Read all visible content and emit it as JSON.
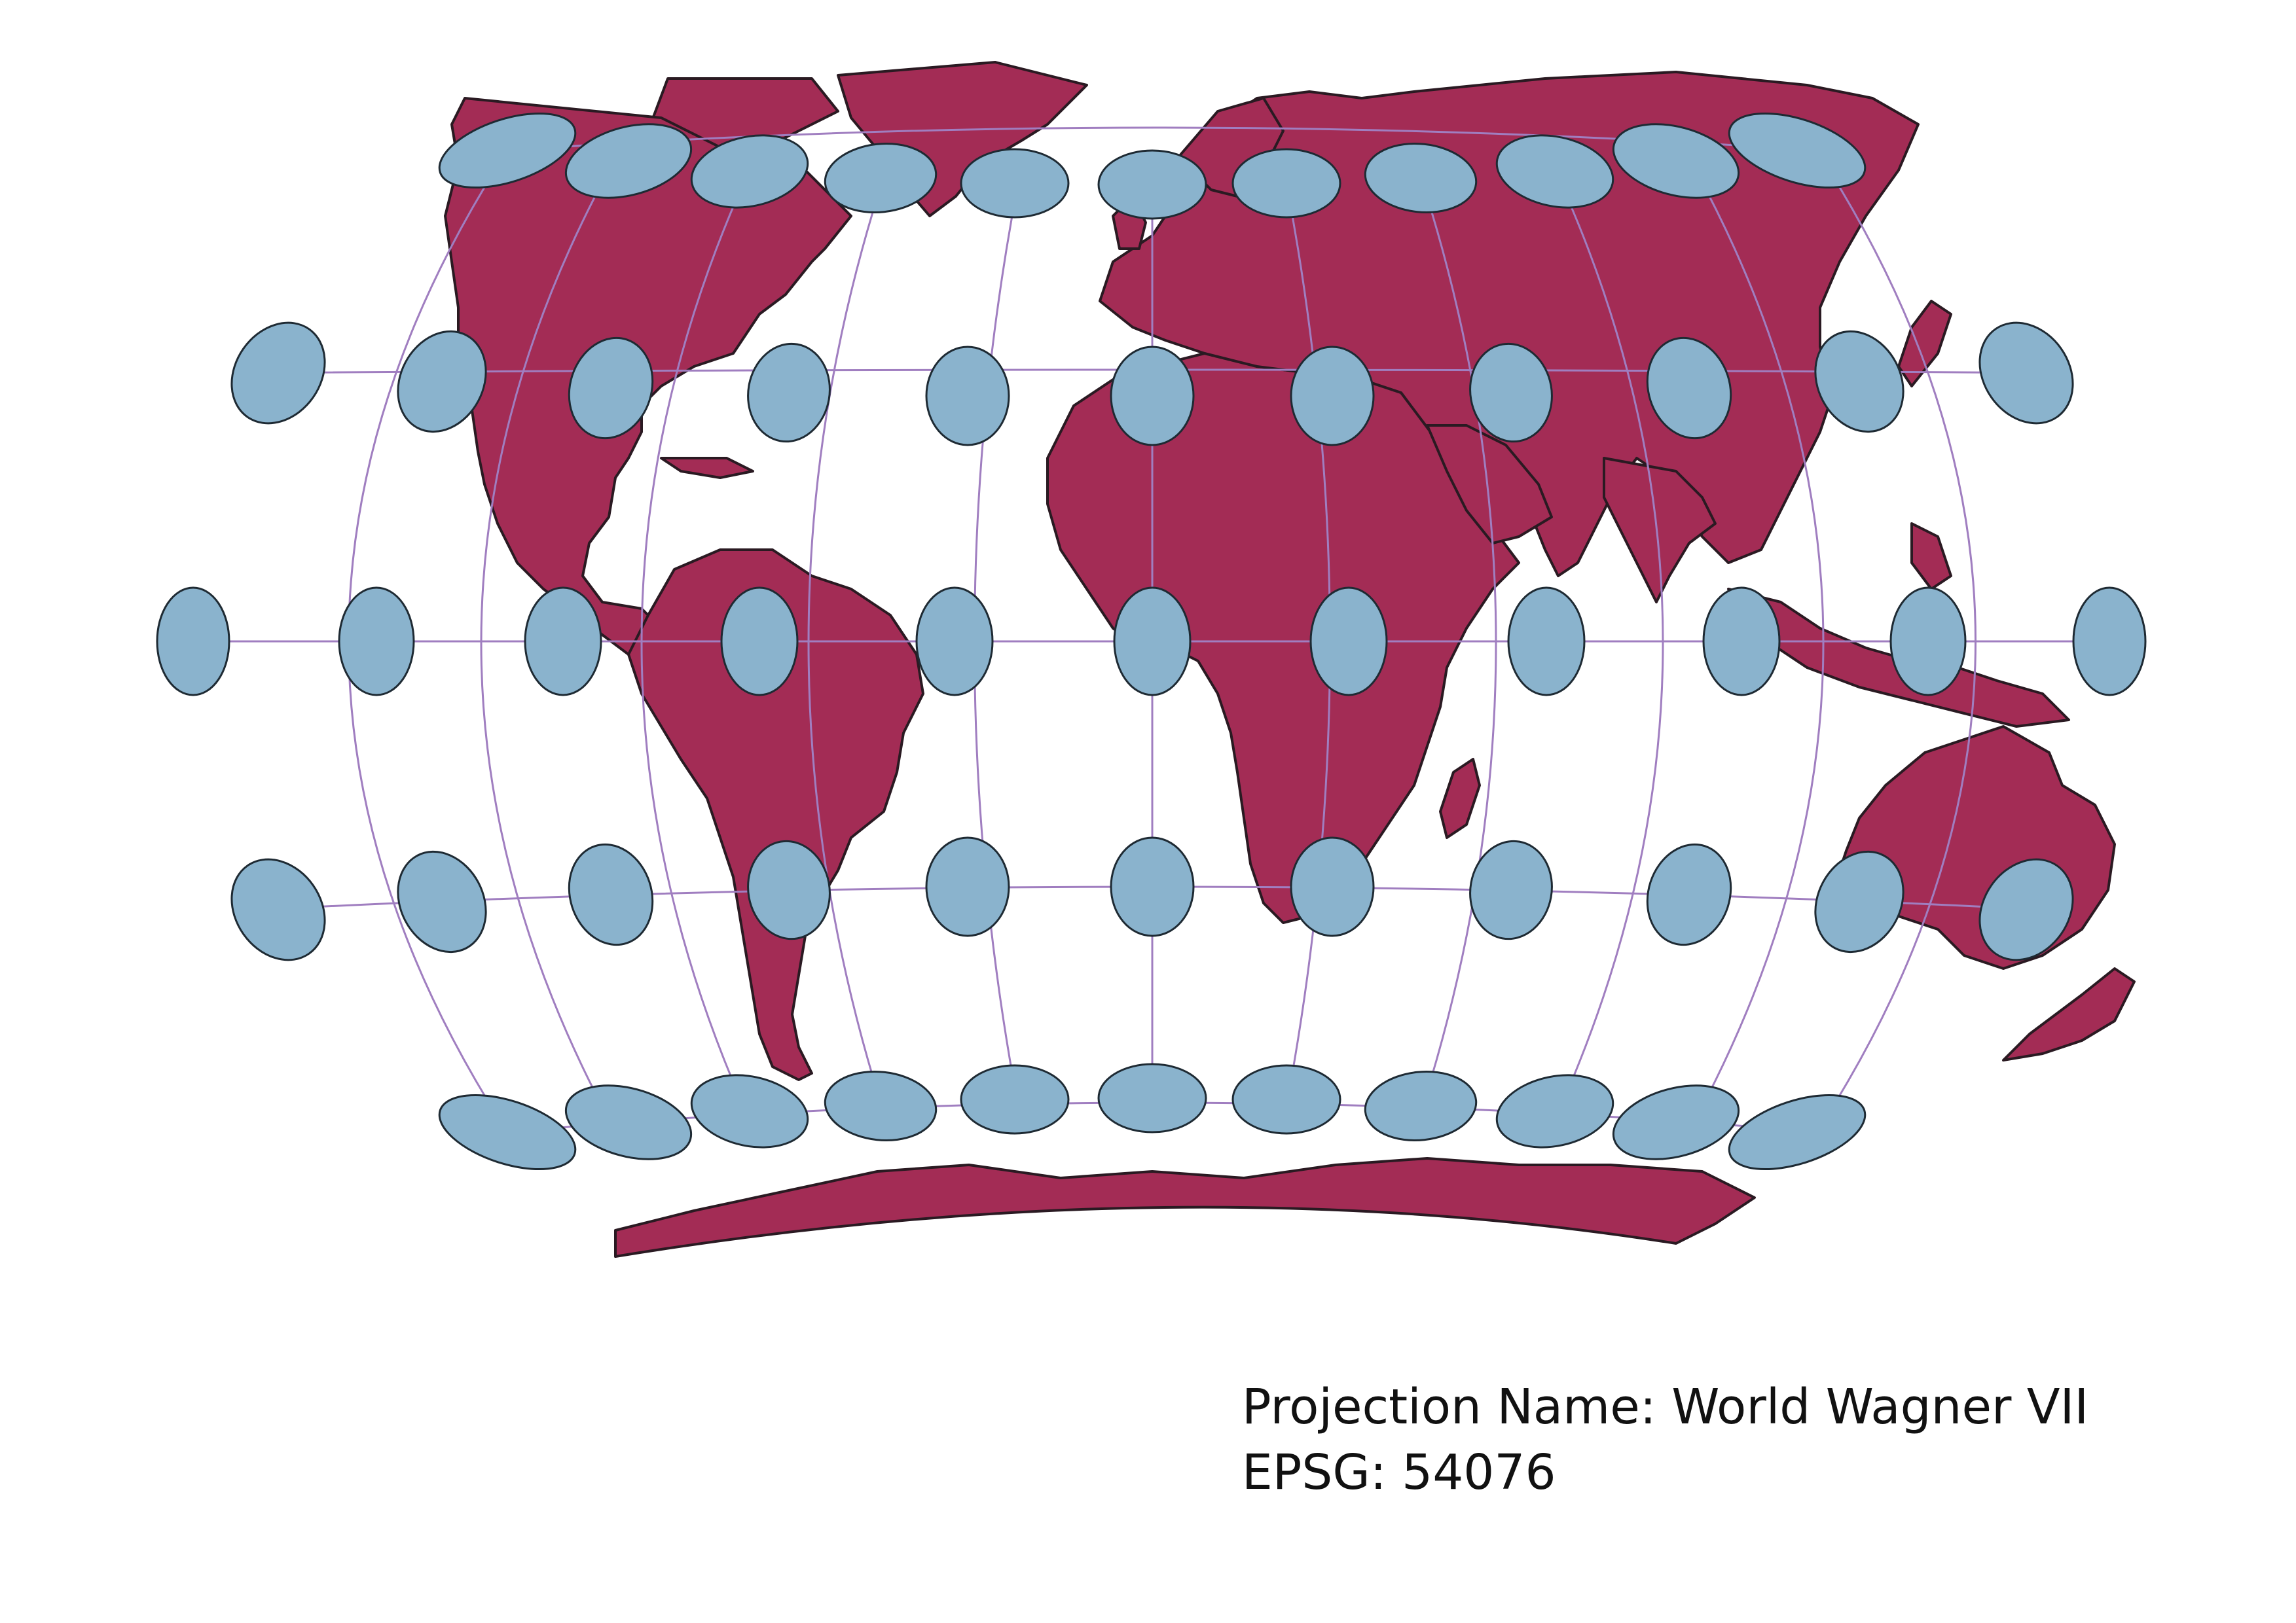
{
  "caption": {
    "projection_line": "Projection Name: World Wagner VII",
    "epsg_line": "EPSG: 54076"
  },
  "map": {
    "land_color": "#A32C55",
    "border_color": "#2A1A22",
    "ocean_color": "#FFFFFF",
    "ellipse_fill": "#8AB3CD",
    "ellipse_stroke": "#1E2A33",
    "graticule_color": "#A07EC0",
    "tissot_rows": [
      {
        "name": "row-n60",
        "count": 11
      },
      {
        "name": "row-n30",
        "count": 11
      },
      {
        "name": "row-eq",
        "count": 11
      },
      {
        "name": "row-s30",
        "count": 11
      },
      {
        "name": "row-s60",
        "count": 11
      }
    ]
  }
}
